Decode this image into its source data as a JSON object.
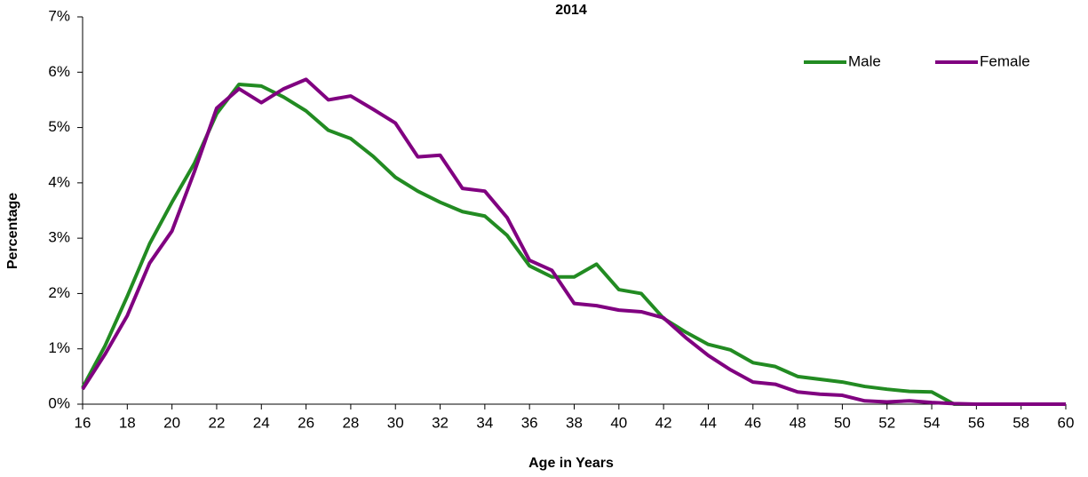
{
  "chart_data": {
    "type": "line",
    "title": "2014",
    "x_label": "Age in Years",
    "y_label": "Percentage",
    "x": [
      16,
      17,
      18,
      19,
      20,
      21,
      22,
      23,
      24,
      25,
      26,
      27,
      28,
      29,
      30,
      31,
      32,
      33,
      34,
      35,
      36,
      37,
      38,
      39,
      40,
      41,
      42,
      43,
      44,
      45,
      46,
      47,
      48,
      49,
      50,
      51,
      52,
      53,
      54,
      55,
      56,
      57,
      58,
      59,
      60
    ],
    "series": [
      {
        "name": "Male",
        "color": "#228b22",
        "values": [
          0.3,
          1.05,
          1.95,
          2.9,
          3.65,
          4.35,
          5.25,
          5.78,
          5.75,
          5.55,
          5.3,
          4.95,
          4.8,
          4.48,
          4.1,
          3.85,
          3.65,
          3.48,
          3.4,
          3.05,
          2.5,
          2.3,
          2.3,
          2.53,
          2.07,
          2.0,
          1.55,
          1.3,
          1.08,
          0.98,
          0.75,
          0.68,
          0.5,
          0.45,
          0.4,
          0.32,
          0.27,
          0.23,
          0.22,
          0,
          0,
          0,
          0,
          0,
          0
        ]
      },
      {
        "name": "Female",
        "color": "#800080",
        "values": [
          0.27,
          0.9,
          1.6,
          2.55,
          3.13,
          4.2,
          5.35,
          5.7,
          5.45,
          5.7,
          5.87,
          5.5,
          5.57,
          5.33,
          5.08,
          4.47,
          4.5,
          3.9,
          3.85,
          3.37,
          2.6,
          2.42,
          1.82,
          1.78,
          1.7,
          1.67,
          1.56,
          1.2,
          0.88,
          0.62,
          0.4,
          0.36,
          0.22,
          0.18,
          0.16,
          0.06,
          0.04,
          0.06,
          0.03,
          0.01,
          0,
          0,
          0,
          0,
          0
        ]
      }
    ],
    "xlim": [
      16,
      60
    ],
    "xticks": [
      16,
      18,
      20,
      22,
      24,
      26,
      28,
      30,
      32,
      34,
      36,
      38,
      40,
      42,
      44,
      46,
      48,
      50,
      52,
      54,
      56,
      58,
      60
    ],
    "ylim": [
      0,
      7
    ],
    "yticks": [
      {
        "value": 0,
        "label": "0%"
      },
      {
        "value": 1,
        "label": "1%"
      },
      {
        "value": 2,
        "label": "2%"
      },
      {
        "value": 3,
        "label": "3%"
      },
      {
        "value": 4,
        "label": "4%"
      },
      {
        "value": 5,
        "label": "5%"
      },
      {
        "value": 6,
        "label": "6%"
      },
      {
        "value": 7,
        "label": "7%"
      }
    ],
    "grid": false,
    "legend": "upper right"
  }
}
